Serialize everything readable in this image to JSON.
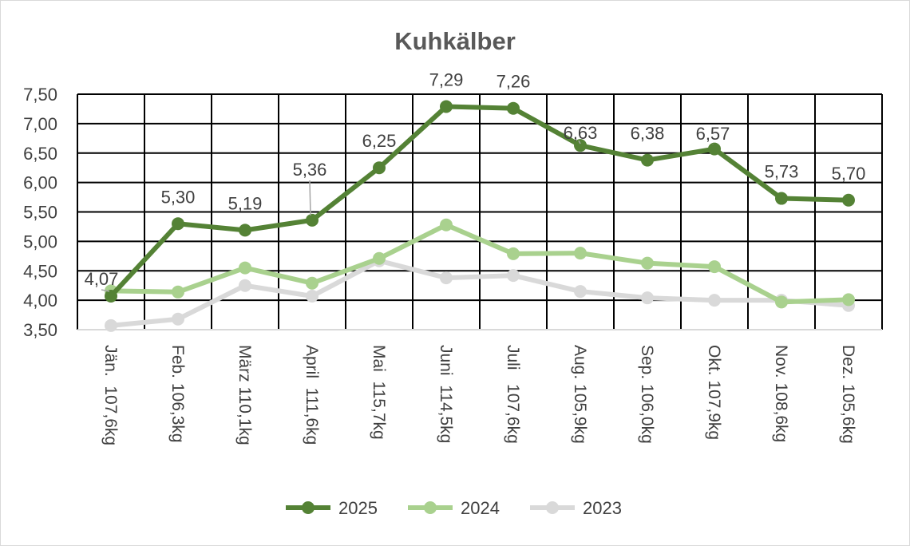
{
  "chart_data": {
    "type": "line",
    "title": "Kuhkälber",
    "xlabel": "",
    "ylabel": "",
    "ylim": [
      3.5,
      7.5
    ],
    "yticks": [
      "3,50",
      "4,00",
      "4,50",
      "5,00",
      "5,50",
      "6,00",
      "6,50",
      "7,00",
      "7,50"
    ],
    "grid": true,
    "legend": "bottom",
    "categories": [
      "Jän.  107,6kg",
      "Feb. 106,3kg",
      "März 110,1kg",
      "April  111,6kg",
      "Mai  115,7kg",
      "Juni  114,5kg",
      "Juli   107,6kg",
      "Aug. 105,9kg",
      "Sep. 106,0kg",
      "Okt. 107,9kg",
      "Nov. 108,6kg",
      "Dez. 105,6kg"
    ],
    "series": [
      {
        "name": "2025",
        "color": "#548235",
        "values": [
          4.07,
          5.3,
          5.19,
          5.36,
          6.25,
          7.29,
          7.26,
          6.63,
          6.38,
          6.57,
          5.73,
          5.7
        ],
        "labels": [
          "4,07",
          "5,30",
          "5,19",
          "5,36",
          "6,25",
          "7,29",
          "7,26",
          "6,63",
          "6,38",
          "6,57",
          "5,73",
          "5,70"
        ]
      },
      {
        "name": "2024",
        "color": "#a9d18e",
        "values": [
          4.16,
          4.14,
          4.55,
          4.29,
          4.71,
          5.28,
          4.79,
          4.8,
          4.63,
          4.57,
          3.97,
          4.01
        ]
      },
      {
        "name": "2023",
        "color": "#d9d9d9",
        "values": [
          3.57,
          3.68,
          4.25,
          4.07,
          4.67,
          4.38,
          4.42,
          4.15,
          4.04,
          4.0,
          4.0,
          3.91
        ]
      }
    ]
  }
}
